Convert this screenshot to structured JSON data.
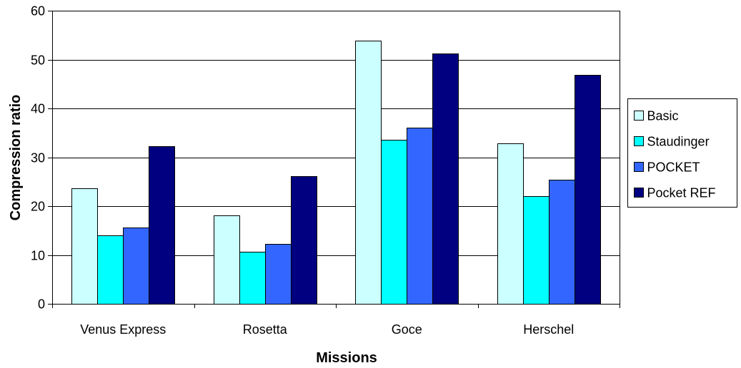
{
  "chart_data": {
    "type": "bar",
    "categories": [
      "Venus Express",
      "Rosetta",
      "Goce",
      "Herschel"
    ],
    "series": [
      {
        "name": "Basic",
        "color": "#ccffff",
        "values": [
          23.6,
          18.1,
          53.9,
          32.9
        ]
      },
      {
        "name": "Staudinger",
        "color": "#00ffff",
        "values": [
          14.0,
          10.6,
          33.6,
          22.0
        ]
      },
      {
        "name": "POCKET",
        "color": "#3366ff",
        "values": [
          15.6,
          12.2,
          36.0,
          25.4
        ]
      },
      {
        "name": "Pocket REF",
        "color": "#000080",
        "values": [
          32.2,
          26.2,
          51.3,
          46.9
        ]
      }
    ],
    "xlabel": "Missions",
    "ylabel": "Compression ratio",
    "ylim": [
      0,
      60
    ],
    "yticks": [
      0,
      10,
      20,
      30,
      40,
      50,
      60
    ],
    "grid": true,
    "legend_position": "right"
  }
}
